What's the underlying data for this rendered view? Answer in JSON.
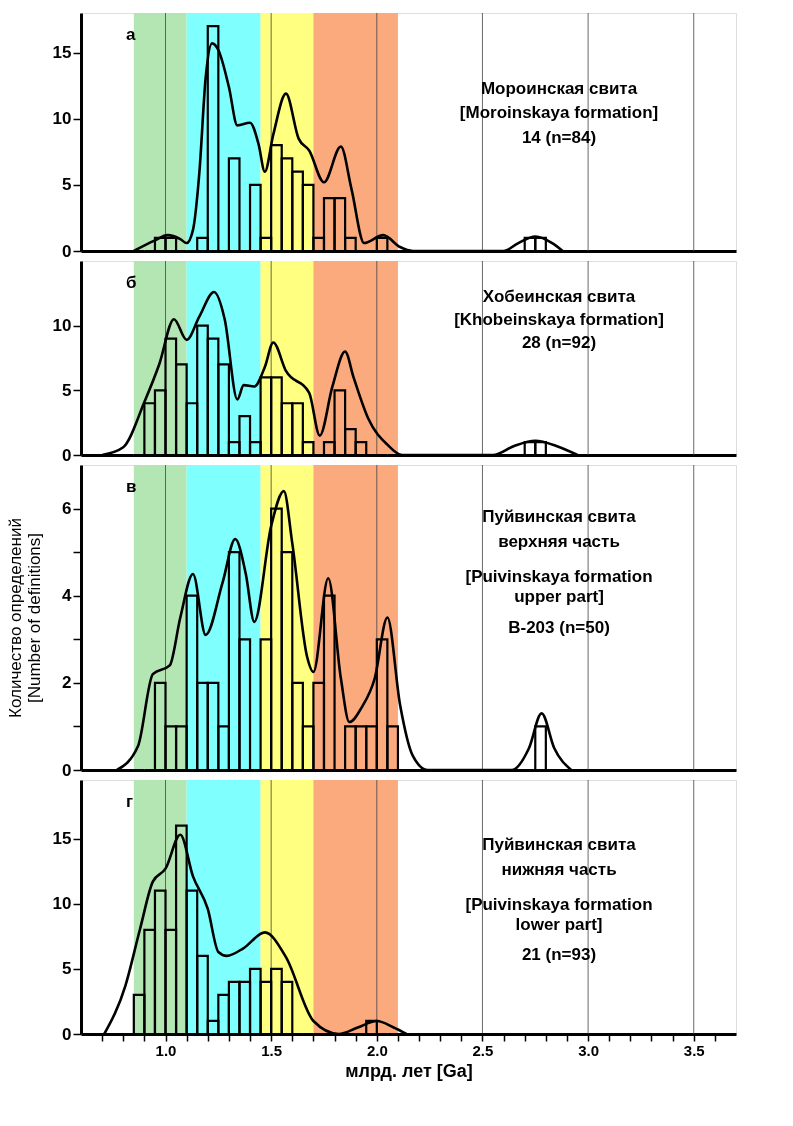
{
  "chart_data": [
    {
      "type": "histogram",
      "xlim": [
        0.6,
        3.7
      ],
      "ylim": [
        0,
        18
      ],
      "yticks": [
        0,
        5,
        10,
        15
      ],
      "tick_labels": "y",
      "grid": "x",
      "xticks": [
        1,
        1.5,
        2,
        2.5,
        3,
        3.5
      ],
      "bands": [
        {
          "axis": "x",
          "from": 0.85,
          "to": 1.1,
          "color": "#b3e6b3"
        },
        {
          "axis": "x",
          "from": 1.1,
          "to": 1.45,
          "color": "#80ffff"
        },
        {
          "axis": "x",
          "from": 1.45,
          "to": 1.7,
          "color": "#ffff80"
        },
        {
          "axis": "x",
          "from": 1.7,
          "to": 2.1,
          "color": "#fbaa7e"
        }
      ],
      "annotations": [
        "а",
        "Мороинская свита",
        "[Moroinskaya formation]",
        "14 (n=84)"
      ],
      "series": [
        {
          "type": "histogram",
          "color": "#000000",
          "bins": [
            0.85,
            0.9,
            0.95,
            1.0,
            1.05,
            1.1,
            1.15,
            1.2,
            1.25,
            1.3,
            1.35,
            1.4,
            1.45,
            1.5,
            1.55,
            1.6,
            1.65,
            1.7,
            1.75,
            1.8,
            1.85,
            1.9,
            1.95,
            2.0,
            2.05,
            2.1,
            2.15,
            2.2,
            2.25,
            2.3,
            2.35,
            2.4,
            2.45,
            2.5,
            2.55,
            2.6,
            2.65,
            2.7,
            2.75,
            2.8,
            2.85
          ],
          "values": [
            0,
            0,
            1,
            1,
            0,
            0,
            1,
            17,
            0,
            7,
            0,
            5,
            1,
            8,
            7,
            6,
            5,
            1,
            4,
            4,
            1,
            0,
            0,
            1,
            0,
            0,
            0,
            0,
            0,
            0,
            0,
            0,
            0,
            0,
            0,
            0,
            0,
            1,
            1,
            0
          ]
        },
        {
          "type": "line",
          "color": "#000000",
          "x": [
            0.85,
            0.95,
            1.01,
            1.07,
            1.1,
            1.13,
            1.16,
            1.19,
            1.22,
            1.25,
            1.3,
            1.34,
            1.4,
            1.44,
            1.47,
            1.51,
            1.57,
            1.63,
            1.68,
            1.75,
            1.83,
            1.88,
            1.94,
            2.03,
            2.11,
            2.17,
            2.6,
            2.67,
            2.75,
            2.83,
            2.88
          ],
          "values": [
            0,
            0.8,
            1.2,
            0.9,
            0.6,
            1.6,
            5.9,
            13.1,
            15.7,
            15.2,
            12.4,
            9.5,
            9.7,
            8.1,
            6.0,
            8.8,
            11.9,
            8.5,
            7.6,
            5.2,
            7.9,
            4.7,
            0.6,
            1.2,
            0.3,
            0,
            0,
            0.6,
            1.1,
            0.6,
            0
          ]
        }
      ]
    },
    {
      "type": "histogram",
      "xlim": [
        0.6,
        3.7
      ],
      "ylim": [
        0,
        15
      ],
      "yticks": [
        0,
        5,
        10
      ],
      "tick_labels": "y",
      "grid": "x",
      "xticks": [
        1,
        1.5,
        2,
        2.5,
        3,
        3.5
      ],
      "bands": [
        {
          "axis": "x",
          "from": 0.85,
          "to": 1.1,
          "color": "#b3e6b3"
        },
        {
          "axis": "x",
          "from": 1.1,
          "to": 1.45,
          "color": "#80ffff"
        },
        {
          "axis": "x",
          "from": 1.45,
          "to": 1.7,
          "color": "#ffff80"
        },
        {
          "axis": "x",
          "from": 1.7,
          "to": 2.1,
          "color": "#fbaa7e"
        }
      ],
      "annotations": [
        "б",
        "Хобеинская свита",
        "[Khobeinskaya formation]",
        "28 (n=92)"
      ],
      "series": [
        {
          "type": "histogram",
          "color": "#000000",
          "bins": [
            0.85,
            0.9,
            0.95,
            1.0,
            1.05,
            1.1,
            1.15,
            1.2,
            1.25,
            1.3,
            1.35,
            1.4,
            1.45,
            1.5,
            1.55,
            1.6,
            1.65,
            1.7,
            1.75,
            1.8,
            1.85,
            1.9,
            1.95,
            2.0,
            2.05,
            2.1,
            2.15,
            2.2,
            2.25,
            2.3,
            2.35,
            2.4,
            2.45,
            2.5,
            2.55,
            2.6,
            2.65,
            2.7,
            2.75,
            2.8,
            2.85
          ],
          "values": [
            0,
            4,
            5,
            9,
            7,
            4,
            10,
            9,
            7,
            1,
            3,
            1,
            6,
            6,
            4,
            4,
            1,
            0,
            1,
            5,
            2,
            1,
            0,
            0,
            0,
            0,
            0,
            0,
            0,
            0,
            0,
            0,
            0,
            0,
            0,
            0,
            0,
            1,
            1,
            0
          ]
        },
        {
          "type": "line",
          "color": "#000000",
          "x": [
            0.7,
            0.8,
            0.9,
            0.97,
            1.04,
            1.1,
            1.16,
            1.23,
            1.28,
            1.34,
            1.37,
            1.42,
            1.47,
            1.51,
            1.57,
            1.68,
            1.73,
            1.79,
            1.85,
            1.89,
            1.96,
            2.05,
            2.12,
            2.55,
            2.65,
            2.75,
            2.85,
            2.95
          ],
          "values": [
            0,
            0.6,
            4.1,
            7.0,
            10.5,
            8.9,
            10.7,
            12.6,
            10.5,
            4.3,
            5.4,
            5.3,
            6.8,
            8.7,
            6.5,
            4.8,
            1.5,
            5.3,
            8.0,
            6.0,
            2.8,
            0.8,
            0,
            0,
            0.7,
            1.1,
            0.7,
            0
          ]
        }
      ]
    },
    {
      "type": "histogram",
      "xlim": [
        0.6,
        3.7
      ],
      "ylim": [
        0,
        7
      ],
      "yticks": [
        0,
        {
          "value": 1,
          "label": null
        },
        2,
        {
          "value": 3,
          "label": null
        },
        4,
        {
          "value": 5,
          "label": null
        },
        6
      ],
      "tick_labels": "y",
      "grid": "x",
      "ylabel": "Количество определений\n[Number of definitions]",
      "xticks": [
        1,
        1.5,
        2,
        2.5,
        3,
        3.5
      ],
      "bands": [
        {
          "axis": "x",
          "from": 0.85,
          "to": 1.1,
          "color": "#b3e6b3"
        },
        {
          "axis": "x",
          "from": 1.1,
          "to": 1.45,
          "color": "#80ffff"
        },
        {
          "axis": "x",
          "from": 1.45,
          "to": 1.7,
          "color": "#ffff80"
        },
        {
          "axis": "x",
          "from": 1.7,
          "to": 2.1,
          "color": "#fbaa7e"
        }
      ],
      "annotations": [
        "в",
        "Пуйвинская свита",
        "верхняя часть",
        "[Puivinskaya formation",
        "upper part]",
        "В-203 (n=50)"
      ],
      "series": [
        {
          "type": "histogram",
          "color": "#000000",
          "bins": [
            0.85,
            0.9,
            0.95,
            1.0,
            1.05,
            1.1,
            1.15,
            1.2,
            1.25,
            1.3,
            1.35,
            1.4,
            1.45,
            1.5,
            1.55,
            1.6,
            1.65,
            1.7,
            1.75,
            1.8,
            1.85,
            1.9,
            1.95,
            2.0,
            2.05,
            2.1,
            2.15,
            2.2,
            2.25,
            2.3,
            2.35,
            2.4,
            2.45,
            2.5,
            2.55,
            2.6,
            2.65,
            2.7,
            2.75,
            2.8,
            2.85
          ],
          "values": [
            0,
            0,
            2,
            1,
            1,
            4,
            2,
            2,
            1,
            5,
            3,
            0,
            3,
            6,
            5,
            2,
            1,
            2,
            4,
            0,
            1,
            1,
            1,
            3,
            1,
            0,
            0,
            0,
            0,
            0,
            0,
            0,
            0,
            0,
            0,
            0,
            0,
            0,
            1,
            0
          ]
        },
        {
          "type": "line",
          "color": "#000000",
          "x": [
            0.77,
            0.87,
            0.94,
            1.02,
            1.07,
            1.13,
            1.19,
            1.27,
            1.33,
            1.38,
            1.42,
            1.5,
            1.56,
            1.6,
            1.67,
            1.7,
            1.77,
            1.83,
            1.87,
            1.93,
            1.99,
            2.05,
            2.11,
            2.17,
            2.24,
            2.64,
            2.72,
            2.78,
            2.84,
            2.92
          ],
          "values": [
            0,
            0.55,
            2.2,
            2.4,
            3.5,
            4.5,
            3.1,
            4.3,
            5.3,
            4.5,
            3.4,
            5.6,
            6.4,
            5.2,
            2.6,
            2.25,
            4.4,
            2.1,
            1.1,
            1.45,
            2.1,
            3.5,
            1.5,
            0.33,
            0,
            0,
            0.5,
            1.3,
            0.5,
            0
          ]
        }
      ]
    },
    {
      "type": "histogram",
      "xlim": [
        0.6,
        3.7
      ],
      "ylim": [
        0,
        19.5
      ],
      "yticks": [
        0,
        5,
        10,
        15
      ],
      "grid": "x",
      "xlabel": "млрд. лет [Ga]",
      "xticks": [
        {
          "value": 0.7,
          "label": null
        },
        {
          "value": 0.8,
          "label": null
        },
        {
          "value": 0.9,
          "label": null
        },
        {
          "value": 1.0,
          "label": "1.0"
        },
        {
          "value": 1.1,
          "label": null
        },
        {
          "value": 1.2,
          "label": null
        },
        {
          "value": 1.3,
          "label": null
        },
        {
          "value": 1.4,
          "label": null
        },
        {
          "value": 1.5,
          "label": "1.5"
        },
        {
          "value": 1.6,
          "label": null
        },
        {
          "value": 1.7,
          "label": null
        },
        {
          "value": 1.8,
          "label": null
        },
        {
          "value": 1.9,
          "label": null
        },
        {
          "value": 2.0,
          "label": "2.0"
        },
        {
          "value": 2.1,
          "label": null
        },
        {
          "value": 2.2,
          "label": null
        },
        {
          "value": 2.3,
          "label": null
        },
        {
          "value": 2.4,
          "label": null
        },
        {
          "value": 2.5,
          "label": "2.5"
        },
        {
          "value": 2.6,
          "label": null
        },
        {
          "value": 2.7,
          "label": null
        },
        {
          "value": 2.8,
          "label": null
        },
        {
          "value": 2.9,
          "label": null
        },
        {
          "value": 3.0,
          "label": "3.0"
        },
        {
          "value": 3.1,
          "label": null
        },
        {
          "value": 3.2,
          "label": null
        },
        {
          "value": 3.3,
          "label": null
        },
        {
          "value": 3.4,
          "label": null
        },
        {
          "value": 3.5,
          "label": "3.5"
        },
        {
          "value": 3.6,
          "label": null
        }
      ],
      "bands": [
        {
          "axis": "x",
          "from": 0.85,
          "to": 1.1,
          "color": "#b3e6b3"
        },
        {
          "axis": "x",
          "from": 1.1,
          "to": 1.45,
          "color": "#80ffff"
        },
        {
          "axis": "x",
          "from": 1.45,
          "to": 1.7,
          "color": "#ffff80"
        },
        {
          "axis": "x",
          "from": 1.7,
          "to": 2.1,
          "color": "#fbaa7e"
        }
      ],
      "annotations": [
        "г",
        "Пуйвинская свита",
        "нижняя часть",
        "[Puivinskaya formation",
        "lower part]",
        "21 (n=93)"
      ],
      "series": [
        {
          "type": "histogram",
          "color": "#000000",
          "bins": [
            0.85,
            0.9,
            0.95,
            1.0,
            1.05,
            1.1,
            1.15,
            1.2,
            1.25,
            1.3,
            1.35,
            1.4,
            1.45,
            1.5,
            1.55,
            1.6,
            1.65,
            1.7,
            1.75,
            1.8,
            1.85,
            1.9,
            1.95,
            2.0,
            2.05,
            2.1,
            2.15,
            2.2,
            2.25,
            2.3,
            2.35,
            2.4,
            2.45,
            2.5,
            2.55,
            2.6,
            2.65,
            2.7,
            2.75,
            2.8,
            2.85
          ],
          "values": [
            3,
            8,
            11,
            8,
            16,
            11,
            6,
            1,
            3,
            4,
            4,
            5,
            4,
            5,
            4,
            0,
            0,
            0,
            0,
            0,
            0,
            0,
            1,
            0,
            0,
            0,
            0,
            0,
            0,
            0,
            0,
            0,
            0,
            0,
            0,
            0,
            0,
            0,
            0,
            0
          ]
        },
        {
          "type": "line",
          "color": "#000000",
          "x": [
            0.71,
            0.81,
            0.88,
            0.94,
            1.0,
            1.07,
            1.13,
            1.2,
            1.25,
            1.29,
            1.37,
            1.47,
            1.57,
            1.7,
            1.82,
            1.91,
            2.0,
            2.08,
            2.14
          ],
          "values": [
            0,
            3.7,
            8.1,
            11.7,
            12.7,
            15.3,
            12.1,
            9.6,
            6.3,
            6.0,
            6.6,
            7.8,
            5.9,
            1.0,
            0,
            0.5,
            1.0,
            0.5,
            0
          ]
        }
      ]
    }
  ]
}
